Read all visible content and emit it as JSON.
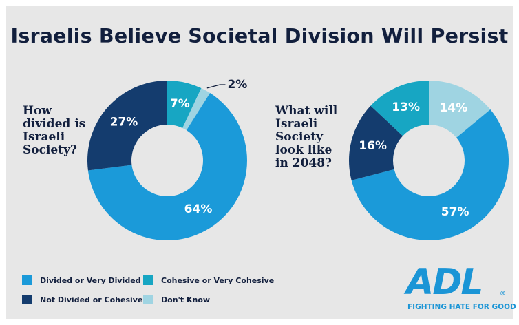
{
  "title": "Israelis Believe Societal Division Will Persist",
  "colors": {
    "divided": "#1b9ad9",
    "not_divided": "#143c6e",
    "cohesive": "#17a6c3",
    "dont_know": "#9fd4e2",
    "title": "#121f3d",
    "background": "#e7e7e7",
    "logo": "#1b95d6"
  },
  "legend": [
    {
      "label": "Divided or Very Divided",
      "color": "#1b9ad9"
    },
    {
      "label": "Not Divided or Cohesive",
      "color": "#143c6e"
    },
    {
      "label": "Cohesive or Very Cohesive",
      "color": "#17a6c3"
    },
    {
      "label": "Don't Know",
      "color": "#9fd4e2"
    }
  ],
  "chart_data": [
    {
      "type": "pie",
      "donut": true,
      "question": "How divided is Israeli Society?",
      "slices": [
        {
          "label": "Cohesive or Very Cohesive",
          "value": 7,
          "display": "7%",
          "color": "#17a6c3"
        },
        {
          "label": "Don't Know",
          "value": 2,
          "display": "2%",
          "color": "#9fd4e2"
        },
        {
          "label": "Divided or Very Divided",
          "value": 64,
          "display": "64%",
          "color": "#1b9ad9"
        },
        {
          "label": "Not Divided or Cohesive",
          "value": 27,
          "display": "27%",
          "color": "#143c6e"
        }
      ]
    },
    {
      "type": "pie",
      "donut": true,
      "question": "What will Israeli Society look like in 2048?",
      "slices": [
        {
          "label": "Don't Know",
          "value": 14,
          "display": "14%",
          "color": "#9fd4e2"
        },
        {
          "label": "Divided or Very Divided",
          "value": 57,
          "display": "57%",
          "color": "#1b9ad9"
        },
        {
          "label": "Not Divided or Cohesive",
          "value": 16,
          "display": "16%",
          "color": "#143c6e"
        },
        {
          "label": "Cohesive or Very Cohesive",
          "value": 13,
          "display": "13%",
          "color": "#17a6c3"
        }
      ]
    }
  ],
  "logo": {
    "text": "ADL",
    "registered": "®",
    "tagline": "FIGHTING HATE FOR GOOD"
  }
}
